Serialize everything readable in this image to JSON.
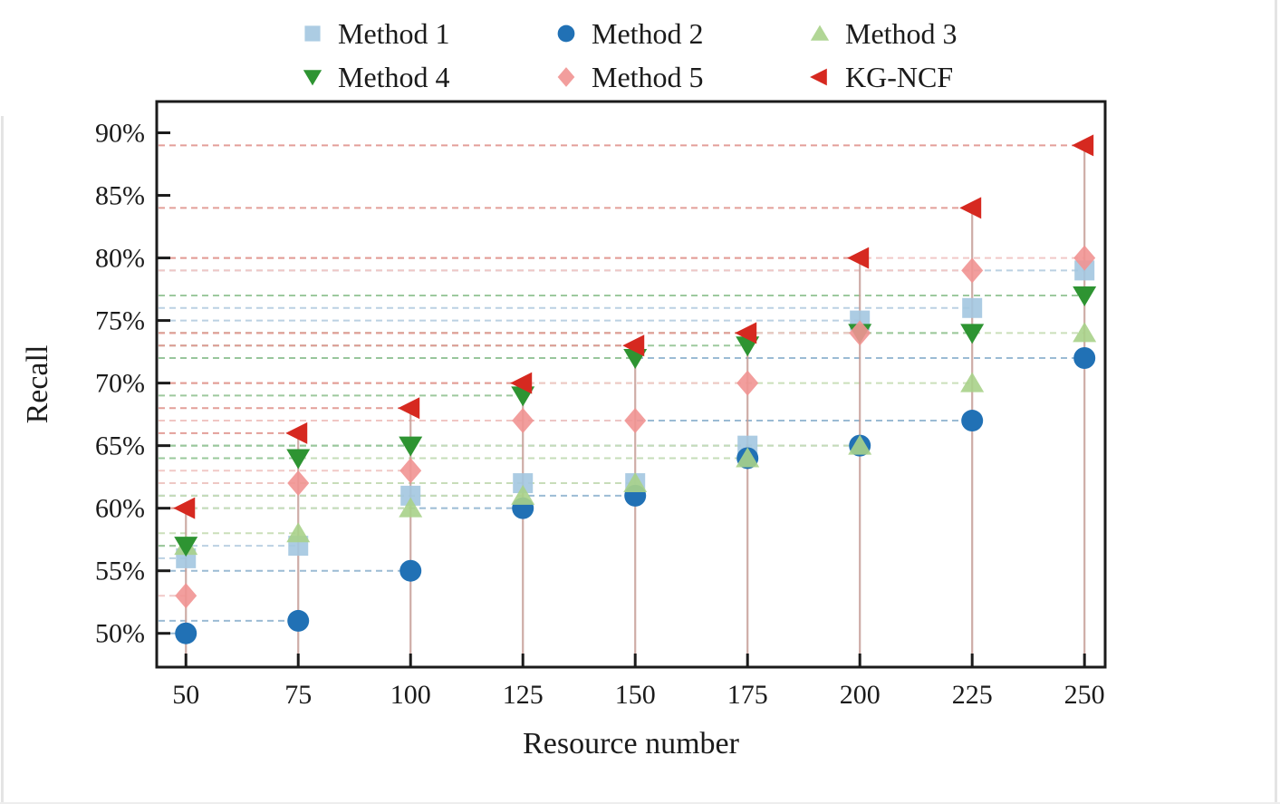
{
  "chart_data": {
    "type": "scatter",
    "title": "",
    "xlabel": "Resource number",
    "ylabel": "Recall",
    "x": [
      50,
      75,
      100,
      125,
      150,
      175,
      200,
      225,
      250
    ],
    "xtick_labels": [
      "50",
      "75",
      "100",
      "125",
      "150",
      "175",
      "200",
      "225",
      "250"
    ],
    "yticks": [
      50,
      55,
      60,
      65,
      70,
      75,
      80,
      85,
      90
    ],
    "ytick_labels": [
      "50%",
      "55%",
      "60%",
      "65%",
      "70%",
      "75%",
      "80%",
      "85%",
      "90%"
    ],
    "xlim": [
      43.5,
      254.6
    ],
    "ylim": [
      47.3,
      92.5
    ],
    "grid": false,
    "legend_position": "top-center",
    "axis_color": "#1b1b1b",
    "series": [
      {
        "name": "Method 1",
        "marker": "square",
        "color": "#a3c7e0",
        "guide_color": "#b7cfe0",
        "values": [
          56,
          57,
          61,
          62,
          62,
          65,
          75,
          76,
          79
        ]
      },
      {
        "name": "Method 2",
        "marker": "circle",
        "color": "#2171b5",
        "guide_color": "#96b7d2",
        "values": [
          50,
          51,
          55,
          60,
          61,
          64,
          65,
          67,
          72
        ]
      },
      {
        "name": "Method 3",
        "marker": "triangle-up",
        "color": "#a9d18a",
        "guide_color": "#c8ddb6",
        "values": [
          57,
          58,
          60,
          61,
          62,
          64,
          65,
          70,
          74
        ]
      },
      {
        "name": "Method 4",
        "marker": "triangle-down",
        "color": "#2e9432",
        "guide_color": "#98c699",
        "values": [
          57,
          64,
          65,
          69,
          72,
          73,
          74,
          74,
          77
        ]
      },
      {
        "name": "Method 5",
        "marker": "diamond",
        "color": "#f19492",
        "guide_color": "#f0c6c4",
        "values": [
          53,
          62,
          63,
          67,
          67,
          70,
          74,
          79,
          80
        ]
      },
      {
        "name": "KG-NCF",
        "marker": "triangle-left",
        "color": "#d62920",
        "guide_color": "#e29a93",
        "values": [
          60,
          66,
          68,
          70,
          73,
          74,
          80,
          84,
          89
        ]
      }
    ],
    "drop_lines": {
      "color": "#c69d97",
      "to_series": "KG-NCF"
    },
    "guide_lines": {
      "style": "dashed",
      "from": "y-axis"
    }
  }
}
